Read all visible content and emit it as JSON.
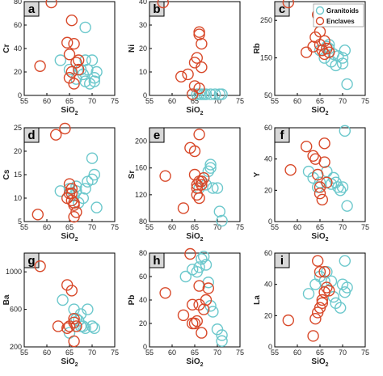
{
  "colors": {
    "granitoids": "#6cc8cc",
    "enclaves": "#d8492a"
  },
  "legend": {
    "granitoids": "Granitoids",
    "enclaves": "Enclaves"
  },
  "chart_data": [
    {
      "type": "scatter",
      "panel": "a",
      "xlabel": "SiO",
      "xsub": "2",
      "ylabel": "Cr",
      "xlim": [
        55,
        75
      ],
      "ylim": [
        0,
        80
      ],
      "xticks": [
        55,
        60,
        65,
        70,
        75
      ],
      "yticks": [
        0,
        20,
        40,
        60,
        80
      ],
      "series": [
        {
          "name": "Granitoids",
          "x": [
            63,
            65,
            66.5,
            67.5,
            68,
            68.5,
            68.5,
            69,
            69.5,
            70,
            70.5,
            71,
            70.5,
            68.5
          ],
          "y": [
            30,
            22,
            14,
            22,
            18,
            30,
            12,
            22,
            10,
            30,
            12,
            20,
            15,
            58
          ]
        },
        {
          "name": "Enclaves",
          "x": [
            58.5,
            61,
            64.5,
            65.5,
            65,
            66,
            66.5,
            65.5,
            65,
            66,
            67,
            67
          ],
          "y": [
            25,
            80,
            45,
            64,
            35,
            44,
            28,
            20,
            15,
            10,
            30,
            22
          ]
        }
      ]
    },
    {
      "type": "scatter",
      "panel": "b",
      "xlabel": "SiO",
      "xsub": "2",
      "ylabel": "Ni",
      "xlim": [
        55,
        75
      ],
      "ylim": [
        0,
        40
      ],
      "xticks": [
        55,
        60,
        65,
        70,
        75
      ],
      "yticks": [
        0,
        10,
        20,
        30,
        40
      ],
      "series": [
        {
          "name": "Granitoids",
          "x": [
            64.5,
            65.5,
            66.5,
            67.5,
            68.5,
            69.5,
            70.5,
            71,
            66,
            67
          ],
          "y": [
            0.5,
            0.5,
            0.5,
            0.5,
            0.5,
            0.5,
            0.5,
            0.5,
            0.5,
            0.5
          ]
        },
        {
          "name": "Enclaves",
          "x": [
            58,
            62,
            63.5,
            65,
            65.5,
            66,
            66,
            66.5,
            66.5,
            65,
            64.5,
            66
          ],
          "y": [
            40,
            8,
            9,
            14,
            16,
            26,
            27,
            22,
            12,
            4,
            0.5,
            3
          ]
        }
      ]
    },
    {
      "type": "scatter",
      "panel": "c",
      "xlabel": "SiO",
      "xsub": "2",
      "ylabel": "Rb",
      "xlim": [
        55,
        75
      ],
      "ylim": [
        50,
        300
      ],
      "xticks": [
        55,
        60,
        65,
        70,
        75
      ],
      "yticks": [
        50,
        150,
        250
      ],
      "series": [
        {
          "name": "Granitoids",
          "x": [
            65,
            66,
            66.5,
            67,
            67.5,
            68,
            68.5,
            69,
            70,
            70.5,
            70,
            67,
            71
          ],
          "y": [
            170,
            150,
            180,
            175,
            140,
            160,
            130,
            155,
            150,
            170,
            135,
            185,
            80
          ]
        },
        {
          "name": "Enclaves",
          "x": [
            58,
            64.5,
            62,
            63.5,
            64,
            65,
            65.5,
            66,
            66.5,
            67,
            65,
            66
          ],
          "y": [
            300,
            265,
            165,
            180,
            205,
            220,
            170,
            195,
            175,
            165,
            185,
            160
          ]
        }
      ]
    },
    {
      "type": "scatter",
      "panel": "d",
      "xlabel": "SiO",
      "xsub": "2",
      "ylabel": "Cs",
      "xlim": [
        55,
        75
      ],
      "ylim": [
        5,
        25
      ],
      "xticks": [
        55,
        60,
        65,
        70,
        75
      ],
      "yticks": [
        5,
        10,
        15,
        20,
        25
      ],
      "series": [
        {
          "name": "Granitoids",
          "x": [
            63,
            65,
            66,
            66.5,
            67,
            68,
            68.5,
            69,
            70,
            70.5,
            71,
            66.5,
            70
          ],
          "y": [
            11.5,
            12,
            10.5,
            11.5,
            9,
            10,
            12,
            13.5,
            18.5,
            15,
            8,
            12.5,
            14
          ]
        },
        {
          "name": "Enclaves",
          "x": [
            58,
            62,
            64,
            65,
            65.5,
            65.5,
            65.5,
            66,
            66,
            65,
            64.5,
            66,
            66.5
          ],
          "y": [
            6.5,
            23.5,
            25,
            13,
            12,
            11,
            9.5,
            9,
            8.5,
            11,
            10,
            6,
            7
          ]
        }
      ]
    },
    {
      "type": "scatter",
      "panel": "e",
      "xlabel": "SiO",
      "xsub": "2",
      "ylabel": "Sr",
      "xlim": [
        55,
        75
      ],
      "ylim": [
        80,
        220
      ],
      "xticks": [
        55,
        60,
        65,
        70,
        75
      ],
      "yticks": [
        80,
        120,
        160,
        200
      ],
      "series": [
        {
          "name": "Granitoids",
          "x": [
            66,
            66.5,
            67,
            68,
            68.5,
            68.5,
            69,
            70,
            70.5,
            71,
            67.5
          ],
          "y": [
            130,
            140,
            145,
            155,
            165,
            160,
            130,
            130,
            95,
            80,
            135
          ]
        },
        {
          "name": "Enclaves",
          "x": [
            58.5,
            62.5,
            64,
            65,
            65,
            65.5,
            66,
            66,
            66.5,
            66.5,
            65.5,
            67,
            65.5,
            66
          ],
          "y": [
            148,
            100,
            190,
            150,
            185,
            130,
            210,
            140,
            135,
            140,
            135,
            145,
            120,
            115
          ]
        }
      ]
    },
    {
      "type": "scatter",
      "panel": "f",
      "xlabel": "SiO",
      "xsub": "2",
      "ylabel": "Y",
      "xlim": [
        55,
        75
      ],
      "ylim": [
        0,
        60
      ],
      "xticks": [
        55,
        60,
        65,
        70,
        75
      ],
      "yticks": [
        0,
        20,
        40,
        60
      ],
      "series": [
        {
          "name": "Granitoids",
          "x": [
            62.5,
            63.5,
            64.5,
            65,
            66.5,
            67.5,
            68,
            68.5,
            69,
            69.5,
            70.5,
            70,
            71
          ],
          "y": [
            32,
            28,
            22,
            25,
            32,
            24,
            28,
            25,
            22,
            20,
            58,
            22,
            10
          ]
        },
        {
          "name": "Enclaves",
          "x": [
            58.5,
            62,
            63.5,
            64,
            64.5,
            65,
            65,
            65.5,
            66,
            66,
            66.5
          ],
          "y": [
            33,
            48,
            42,
            40,
            30,
            22,
            18,
            14,
            50,
            38,
            25
          ]
        }
      ]
    },
    {
      "type": "scatter",
      "panel": "g",
      "xlabel": "SiO",
      "xsub": "2",
      "ylabel": "Ba",
      "xlim": [
        55,
        75
      ],
      "ylim": [
        200,
        1200
      ],
      "xticks": [
        55,
        60,
        65,
        70,
        75
      ],
      "yticks": [
        200,
        600,
        1000
      ],
      "series": [
        {
          "name": "Granitoids",
          "x": [
            63.5,
            65,
            66,
            66.5,
            67,
            67.5,
            68,
            68.5,
            69,
            70,
            70.5,
            67.5
          ],
          "y": [
            700,
            350,
            600,
            500,
            480,
            550,
            420,
            400,
            600,
            420,
            400,
            420
          ]
        },
        {
          "name": "Enclaves",
          "x": [
            58.5,
            62.5,
            64.5,
            65.5,
            66,
            66,
            66.5,
            65,
            64.5,
            66
          ],
          "y": [
            1060,
            420,
            860,
            800,
            500,
            460,
            420,
            420,
            400,
            260
          ]
        }
      ]
    },
    {
      "type": "scatter",
      "panel": "h",
      "xlabel": "SiO",
      "xsub": "2",
      "ylabel": "Pb",
      "xlim": [
        55,
        75
      ],
      "ylim": [
        0,
        80
      ],
      "xticks": [
        55,
        60,
        65,
        70,
        75
      ],
      "yticks": [
        0,
        20,
        40,
        60,
        80
      ],
      "series": [
        {
          "name": "Granitoids",
          "x": [
            63,
            64.5,
            65.5,
            66,
            66.5,
            67,
            67.5,
            68,
            68.5,
            69,
            70,
            71,
            71
          ],
          "y": [
            60,
            66,
            64,
            68,
            75,
            77,
            70,
            55,
            35,
            30,
            15,
            10,
            5
          ]
        },
        {
          "name": "Enclaves",
          "x": [
            58.5,
            62.5,
            64,
            64.5,
            65,
            65.5,
            66,
            66,
            66.5,
            67,
            67.5,
            68,
            64.5
          ],
          "y": [
            46,
            27,
            80,
            36,
            20,
            22,
            36,
            52,
            12,
            32,
            40,
            50,
            20
          ]
        }
      ]
    },
    {
      "type": "scatter",
      "panel": "i",
      "xlabel": "SiO",
      "xsub": "2",
      "ylabel": "La",
      "xlim": [
        55,
        75
      ],
      "ylim": [
        0,
        60
      ],
      "xticks": [
        55,
        60,
        65,
        70,
        75
      ],
      "yticks": [
        0,
        20,
        40,
        60
      ],
      "series": [
        {
          "name": "Granitoids",
          "x": [
            62.5,
            64,
            65,
            66,
            66.5,
            67.5,
            68,
            68.5,
            69.5,
            70.5,
            70,
            70.5,
            71
          ],
          "y": [
            34,
            40,
            45,
            42,
            48,
            42,
            32,
            28,
            25,
            55,
            40,
            35,
            38
          ]
        },
        {
          "name": "Enclaves",
          "x": [
            58,
            63.5,
            64,
            64.5,
            65,
            65.5,
            65.5,
            66,
            66.5,
            67,
            65,
            64.5,
            66
          ],
          "y": [
            17,
            7,
            18,
            22,
            25,
            28,
            30,
            35,
            38,
            36,
            48,
            55,
            48
          ]
        }
      ]
    }
  ]
}
